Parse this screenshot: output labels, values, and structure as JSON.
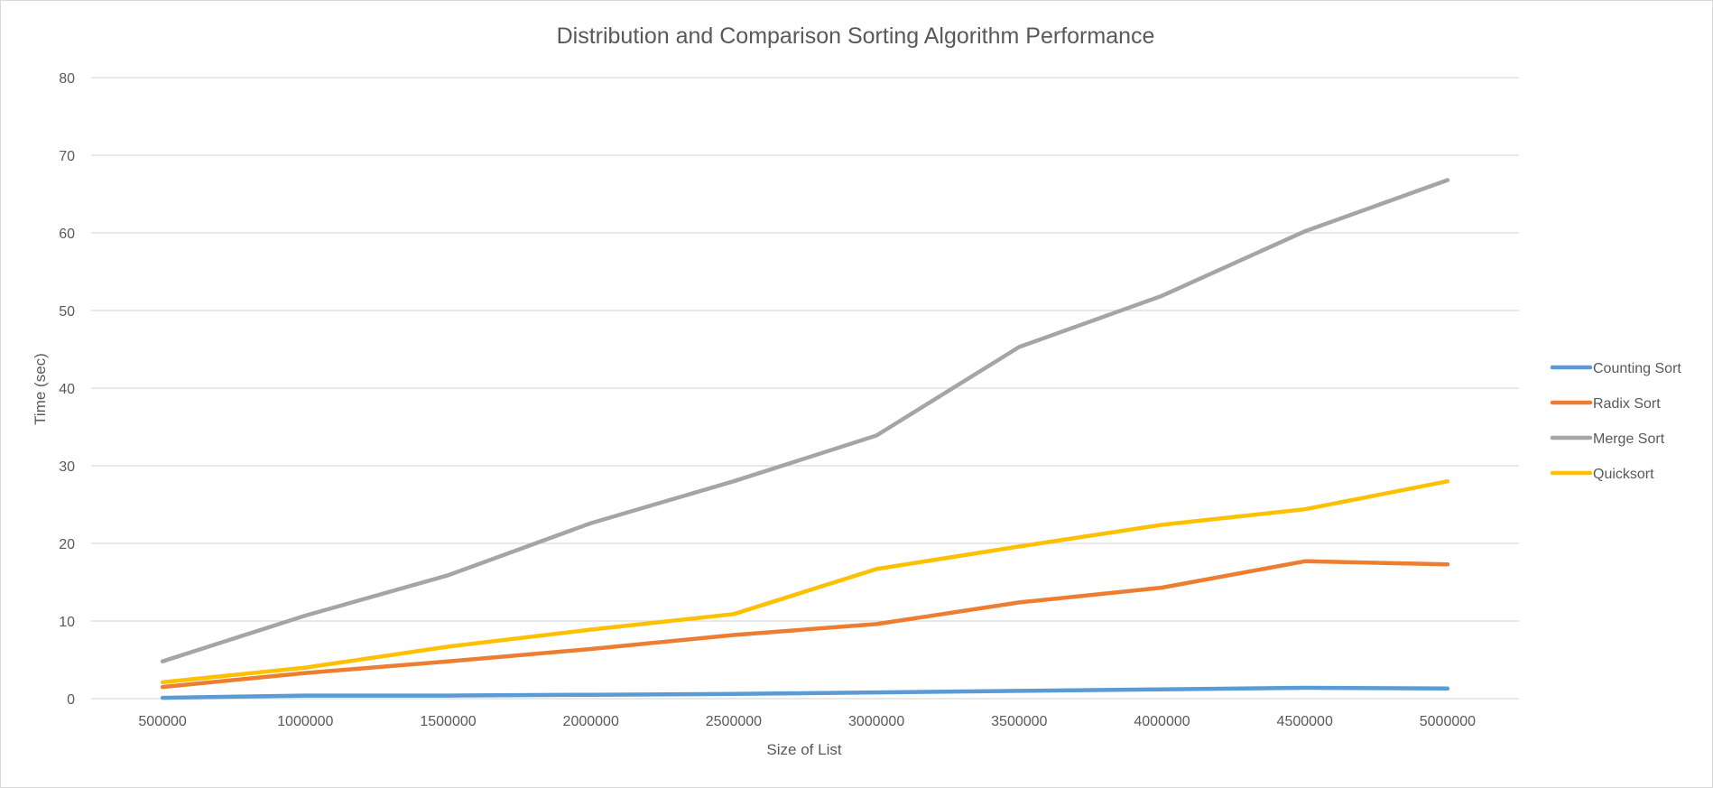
{
  "chart_data": {
    "type": "line",
    "title": "Distribution and Comparison Sorting Algorithm Performance",
    "xlabel": "Size of List",
    "ylabel": "Time (sec)",
    "categories": [
      "500000",
      "1000000",
      "1500000",
      "2000000",
      "2500000",
      "3000000",
      "3500000",
      "4000000",
      "4500000",
      "5000000"
    ],
    "y_ticks": [
      "0",
      "10",
      "20",
      "30",
      "40",
      "50",
      "60",
      "70",
      "80"
    ],
    "ylim": [
      0,
      80
    ],
    "grid": true,
    "legend_position": "right",
    "series": [
      {
        "name": "Counting Sort",
        "color": "#5b9bd5",
        "values": [
          0.1,
          0.4,
          0.4,
          0.5,
          0.6,
          0.8,
          1.0,
          1.2,
          1.4,
          1.3
        ]
      },
      {
        "name": "Radix Sort",
        "color": "#ed7d31",
        "values": [
          1.5,
          3.3,
          4.8,
          6.4,
          8.2,
          9.6,
          12.4,
          14.3,
          17.7,
          17.3
        ]
      },
      {
        "name": "Merge Sort",
        "color": "#a5a5a5",
        "values": [
          4.8,
          10.7,
          15.9,
          22.6,
          28.0,
          33.9,
          45.3,
          51.9,
          60.2,
          66.8
        ]
      },
      {
        "name": "Quicksort",
        "color": "#ffc000",
        "values": [
          2.1,
          4.0,
          6.7,
          8.9,
          10.9,
          16.7,
          19.6,
          22.4,
          24.4,
          28.0
        ]
      }
    ]
  }
}
